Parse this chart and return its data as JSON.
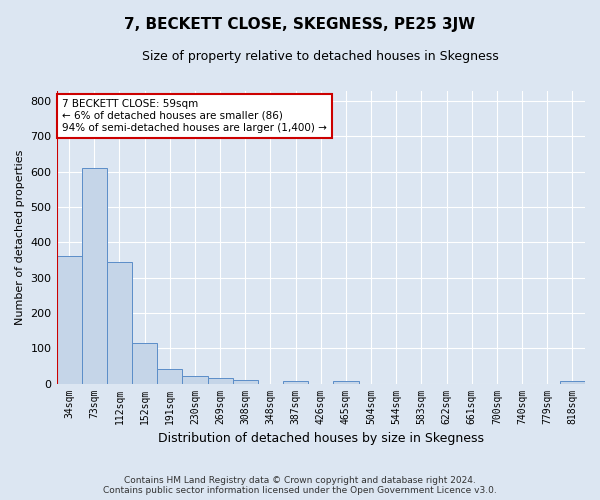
{
  "title": "7, BECKETT CLOSE, SKEGNESS, PE25 3JW",
  "subtitle": "Size of property relative to detached houses in Skegness",
  "xlabel": "Distribution of detached houses by size in Skegness",
  "ylabel": "Number of detached properties",
  "footer_line1": "Contains HM Land Registry data © Crown copyright and database right 2024.",
  "footer_line2": "Contains public sector information licensed under the Open Government Licence v3.0.",
  "categories": [
    "34sqm",
    "73sqm",
    "112sqm",
    "152sqm",
    "191sqm",
    "230sqm",
    "269sqm",
    "308sqm",
    "348sqm",
    "387sqm",
    "426sqm",
    "465sqm",
    "504sqm",
    "544sqm",
    "583sqm",
    "622sqm",
    "661sqm",
    "700sqm",
    "740sqm",
    "779sqm",
    "818sqm"
  ],
  "values": [
    360,
    610,
    345,
    115,
    40,
    22,
    15,
    10,
    0,
    8,
    0,
    8,
    0,
    0,
    0,
    0,
    0,
    0,
    0,
    0,
    7
  ],
  "bar_color": "#c5d5e8",
  "bar_edge_color": "#5b8dc8",
  "highlight_line_color": "#cc0000",
  "annotation_text": "7 BECKETT CLOSE: 59sqm\n← 6% of detached houses are smaller (86)\n94% of semi-detached houses are larger (1,400) →",
  "annotation_box_color": "#ffffff",
  "annotation_box_edge": "#cc0000",
  "ylim": [
    0,
    830
  ],
  "yticks": [
    0,
    100,
    200,
    300,
    400,
    500,
    600,
    700,
    800
  ],
  "bg_color": "#dce6f2",
  "plot_bg_color": "#dce6f2",
  "grid_color": "#ffffff",
  "title_fontsize": 11,
  "subtitle_fontsize": 9,
  "ylabel_fontsize": 8,
  "xlabel_fontsize": 9
}
